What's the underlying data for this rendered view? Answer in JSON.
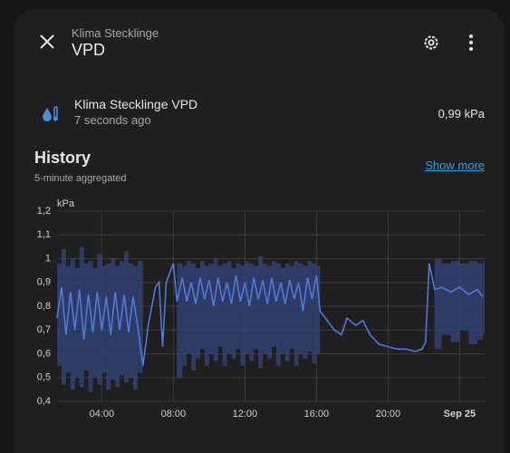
{
  "header": {
    "subtitle": "Klima Stecklinge",
    "title": "VPD"
  },
  "entity": {
    "name": "Klima Stecklinge VPD",
    "time": "7 seconds ago",
    "state": "0,99 kPa"
  },
  "history": {
    "title": "History",
    "subtitle": "5-minute aggregated",
    "show_more": "Show more"
  },
  "chart_data": {
    "type": "line",
    "y_label": "kPa",
    "color": "#4f78dc",
    "band_color": "#34457e",
    "grid": true,
    "xlim": [
      1.5,
      25.4
    ],
    "ylim": [
      0.4,
      1.2
    ],
    "xticks": [
      {
        "value": 4,
        "label": "04:00"
      },
      {
        "value": 8,
        "label": "08:00"
      },
      {
        "value": 12,
        "label": "12:00"
      },
      {
        "value": 16,
        "label": "16:00"
      },
      {
        "value": 20,
        "label": "20:00"
      },
      {
        "value": 24,
        "label": "Sep 25"
      }
    ],
    "yticks": [
      {
        "value": 0.4,
        "label": "0,4"
      },
      {
        "value": 0.5,
        "label": "0,5"
      },
      {
        "value": 0.6,
        "label": "0,6"
      },
      {
        "value": 0.7,
        "label": "0,7"
      },
      {
        "value": 0.8,
        "label": "0,8"
      },
      {
        "value": 0.9,
        "label": "0,9"
      },
      1,
      {
        "value": 1.1,
        "label": "1,1"
      },
      {
        "value": 1.2,
        "label": "1,2"
      }
    ],
    "x": [
      1.5,
      1.75,
      2,
      2.25,
      2.5,
      2.75,
      3,
      3.25,
      3.5,
      3.75,
      4,
      4.25,
      4.5,
      4.75,
      5,
      5.25,
      5.5,
      5.75,
      6,
      6.3,
      6.6,
      7,
      7.2,
      7.4,
      7.6,
      8,
      8.2,
      8.5,
      8.75,
      9,
      9.25,
      9.5,
      9.75,
      10,
      10.25,
      10.5,
      10.75,
      11,
      11.25,
      11.5,
      11.75,
      12,
      12.25,
      12.5,
      12.75,
      13,
      13.25,
      13.5,
      13.75,
      14,
      14.25,
      14.5,
      14.75,
      15,
      15.25,
      15.5,
      15.75,
      16,
      16.2,
      16.6,
      17,
      17.4,
      17.7,
      18.2,
      18.6,
      19,
      19.5,
      20,
      20.5,
      21,
      21.5,
      21.9,
      22.1,
      22.3,
      22.6,
      23,
      23.5,
      24,
      24.5,
      25,
      25.3
    ],
    "values": [
      0.75,
      0.88,
      0.68,
      0.86,
      0.7,
      0.87,
      0.66,
      0.85,
      0.69,
      0.86,
      0.7,
      0.84,
      0.68,
      0.86,
      0.7,
      0.85,
      0.69,
      0.84,
      0.72,
      0.55,
      0.72,
      0.88,
      0.9,
      0.63,
      0.9,
      0.98,
      0.82,
      0.92,
      0.82,
      0.9,
      0.81,
      0.92,
      0.83,
      0.91,
      0.8,
      0.92,
      0.82,
      0.9,
      0.81,
      0.93,
      0.82,
      0.9,
      0.8,
      0.92,
      0.83,
      0.91,
      0.81,
      0.92,
      0.82,
      0.9,
      0.81,
      0.91,
      0.83,
      0.9,
      0.78,
      0.92,
      0.83,
      0.93,
      0.78,
      0.74,
      0.7,
      0.68,
      0.75,
      0.72,
      0.74,
      0.68,
      0.64,
      0.63,
      0.62,
      0.62,
      0.61,
      0.62,
      0.65,
      0.98,
      0.87,
      0.88,
      0.86,
      0.88,
      0.85,
      0.87,
      0.84
    ],
    "band_low": [
      0.55,
      0.47,
      0.52,
      0.45,
      0.5,
      0.46,
      0.53,
      0.44,
      0.5,
      0.47,
      0.52,
      0.45,
      0.49,
      0.46,
      0.51,
      0.48,
      0.5,
      0.45,
      0.52,
      null,
      null,
      null,
      null,
      null,
      null,
      null,
      0.5,
      0.55,
      0.6,
      0.53,
      0.58,
      0.62,
      0.55,
      0.6,
      0.57,
      0.63,
      0.55,
      0.6,
      0.58,
      0.62,
      0.55,
      0.6,
      0.57,
      0.62,
      0.54,
      0.6,
      0.58,
      0.63,
      0.55,
      0.6,
      0.57,
      0.62,
      0.55,
      0.6,
      0.58,
      0.61,
      0.56,
      0.6,
      null,
      null,
      null,
      null,
      null,
      null,
      null,
      null,
      null,
      null,
      null,
      null,
      null,
      null,
      null,
      null,
      0.62,
      0.68,
      0.65,
      0.7,
      0.64,
      0.66,
      0.68
    ],
    "band_high": [
      0.98,
      1.04,
      0.97,
      1.0,
      0.96,
      1.05,
      0.98,
      0.99,
      0.96,
      1.02,
      0.97,
      0.98,
      1.0,
      0.97,
      0.99,
      1.03,
      0.98,
      0.97,
      0.99,
      null,
      null,
      null,
      null,
      null,
      null,
      null,
      0.98,
      0.97,
      0.99,
      0.98,
      0.96,
      0.99,
      0.97,
      0.98,
      1.0,
      0.97,
      0.98,
      0.99,
      0.96,
      0.98,
      0.97,
      0.99,
      0.98,
      0.97,
      1.01,
      0.98,
      0.97,
      0.99,
      0.98,
      0.96,
      0.98,
      0.97,
      0.99,
      0.98,
      0.97,
      0.99,
      0.98,
      0.97,
      null,
      null,
      null,
      null,
      null,
      null,
      null,
      null,
      null,
      null,
      null,
      null,
      null,
      null,
      null,
      null,
      1.0,
      0.98,
      0.99,
      0.98,
      0.99,
      0.98,
      0.99
    ]
  }
}
